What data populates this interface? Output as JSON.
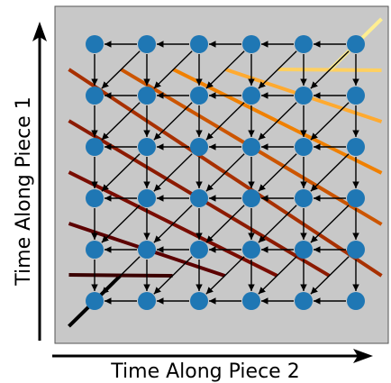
{
  "diagram": {
    "x_axis_label": "Time Along Piece 2",
    "y_axis_label": "Time Along Piece 1",
    "grid_rows": 6,
    "grid_cols": 6,
    "edge_directions": [
      "left",
      "down",
      "down-left"
    ],
    "colors": {
      "panel_background": "#c8c8c8",
      "panel_border": "#555555",
      "node_fill": "#1f77b4",
      "edge_stroke": "#000000",
      "axis_arrow": "#000000"
    },
    "anti_diagonal_colors": [
      "#000000",
      "#3a0000",
      "#5c0000",
      "#7a0c00",
      "#8c1a00",
      "#a83000",
      "#cc5500",
      "#f08000",
      "#ffaa30",
      "#ffd060",
      "#ffee90"
    ]
  }
}
